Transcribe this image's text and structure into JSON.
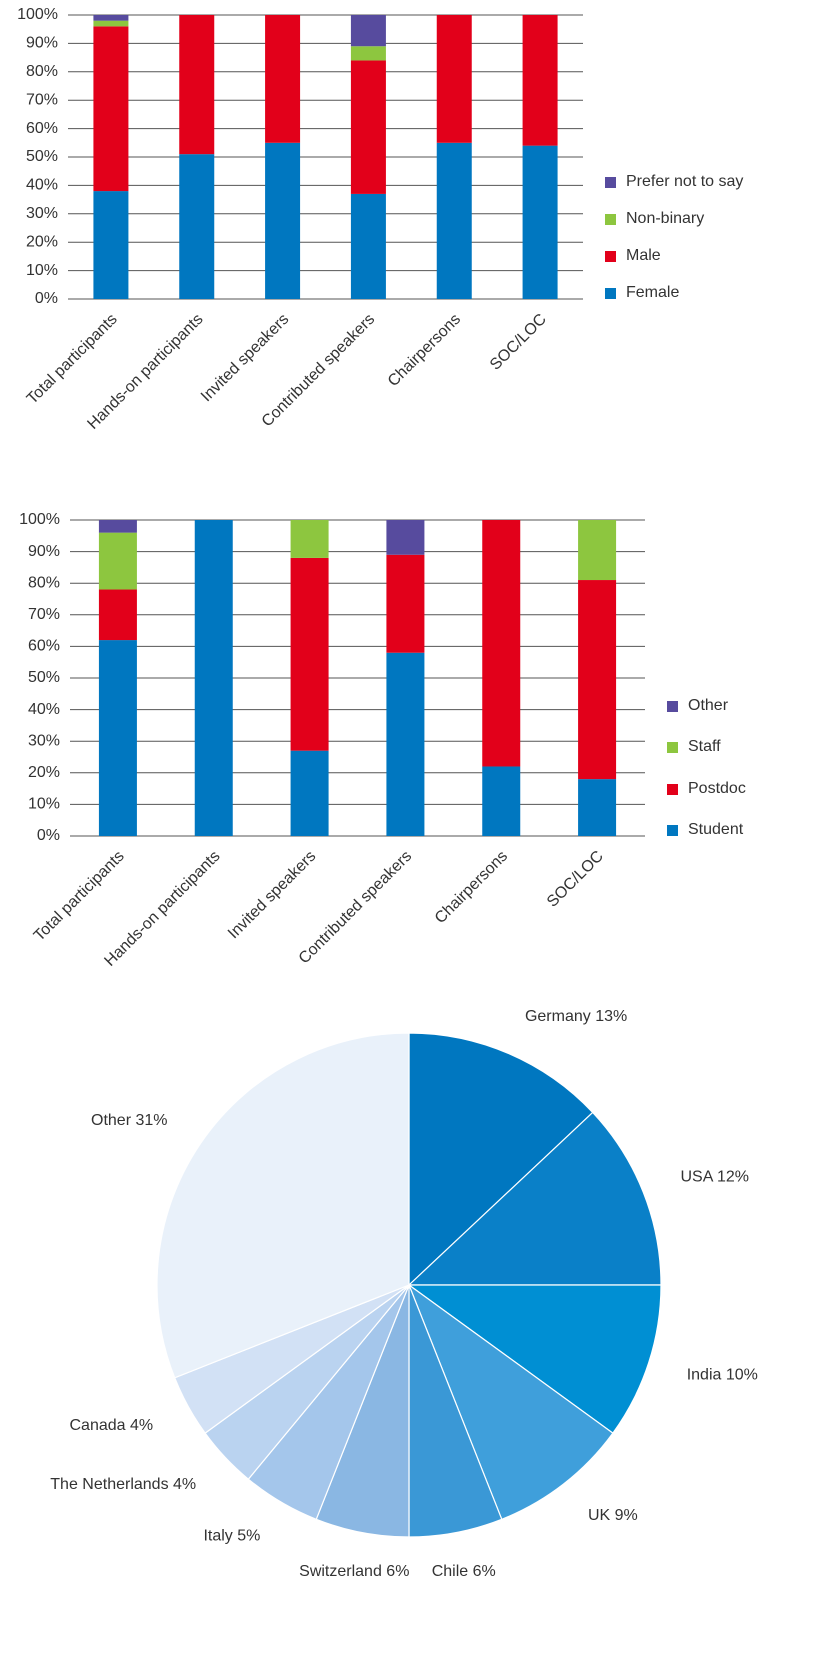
{
  "chart_data": [
    {
      "type": "bar",
      "stacked": true,
      "categories": [
        "Total participants",
        "Hands-on participants",
        "Invited speakers",
        "Contributed speakers",
        "Chairpersons",
        "SOC/LOC"
      ],
      "series": [
        {
          "name": "Female",
          "color": "#0077c0",
          "values": [
            38,
            51,
            55,
            37,
            55,
            54
          ]
        },
        {
          "name": "Male",
          "color": "#e2001a",
          "values": [
            58,
            49,
            45,
            47,
            45,
            46
          ]
        },
        {
          "name": "Non-binary",
          "color": "#8dc63f",
          "values": [
            2,
            0,
            0,
            5,
            0,
            0
          ]
        },
        {
          "name": "Prefer not to say",
          "color": "#574b9e",
          "values": [
            2,
            0,
            0,
            11,
            0,
            0
          ]
        }
      ],
      "ylim": [
        0,
        100
      ],
      "yticks": [
        {
          "value": 0,
          "label": "0%"
        },
        {
          "value": 10,
          "label": "10%"
        },
        {
          "value": 20,
          "label": "20%"
        },
        {
          "value": 30,
          "label": "30%"
        },
        {
          "value": 40,
          "label": "40%"
        },
        {
          "value": 50,
          "label": "50%"
        },
        {
          "value": 60,
          "label": "60%"
        },
        {
          "value": 70,
          "label": "70%"
        },
        {
          "value": 80,
          "label": "80%"
        },
        {
          "value": 90,
          "label": "90%"
        },
        {
          "value": 100,
          "label": "100%"
        }
      ],
      "grid": true,
      "legend": "right"
    },
    {
      "type": "bar",
      "stacked": true,
      "categories": [
        "Total participants",
        "Hands-on participants",
        "Invited speakers",
        "Contributed speakers",
        "Chairpersons",
        "SOC/LOC"
      ],
      "series": [
        {
          "name": "Student",
          "color": "#0077c0",
          "values": [
            62,
            100,
            27,
            58,
            22,
            18
          ]
        },
        {
          "name": "Postdoc",
          "color": "#e2001a",
          "values": [
            16,
            0,
            61,
            31,
            78,
            63
          ]
        },
        {
          "name": "Staff",
          "color": "#8dc63f",
          "values": [
            18,
            0,
            12,
            0,
            0,
            19
          ]
        },
        {
          "name": "Other",
          "color": "#574b9e",
          "values": [
            4,
            0,
            0,
            11,
            0,
            0
          ]
        }
      ],
      "ylim": [
        0,
        100
      ],
      "yticks": [
        {
          "value": 0,
          "label": "0%"
        },
        {
          "value": 10,
          "label": "10%"
        },
        {
          "value": 20,
          "label": "20%"
        },
        {
          "value": 30,
          "label": "30%"
        },
        {
          "value": 40,
          "label": "40%"
        },
        {
          "value": 50,
          "label": "50%"
        },
        {
          "value": 60,
          "label": "60%"
        },
        {
          "value": 70,
          "label": "70%"
        },
        {
          "value": 80,
          "label": "80%"
        },
        {
          "value": 90,
          "label": "90%"
        },
        {
          "value": 100,
          "label": "100%"
        }
      ],
      "grid": true,
      "legend": "right"
    },
    {
      "type": "pie",
      "labels": [
        "Germany 13%",
        "USA 12%",
        "India 10%",
        "UK 9%",
        "Chile 6%",
        "Switzerland 6%",
        "Italy 5%",
        "The Netherlands 4%",
        "Canada 4%",
        "Other 31%"
      ],
      "values": [
        13,
        12,
        10,
        9,
        6,
        6,
        5,
        4,
        4,
        31
      ],
      "colors": [
        "#0077c0",
        "#0a80c8",
        "#008fd3",
        "#3f9fdb",
        "#3a98d6",
        "#8ab7e3",
        "#a4c6eb",
        "#bad3f0",
        "#d2e1f5",
        "#e9f1fa"
      ]
    }
  ]
}
